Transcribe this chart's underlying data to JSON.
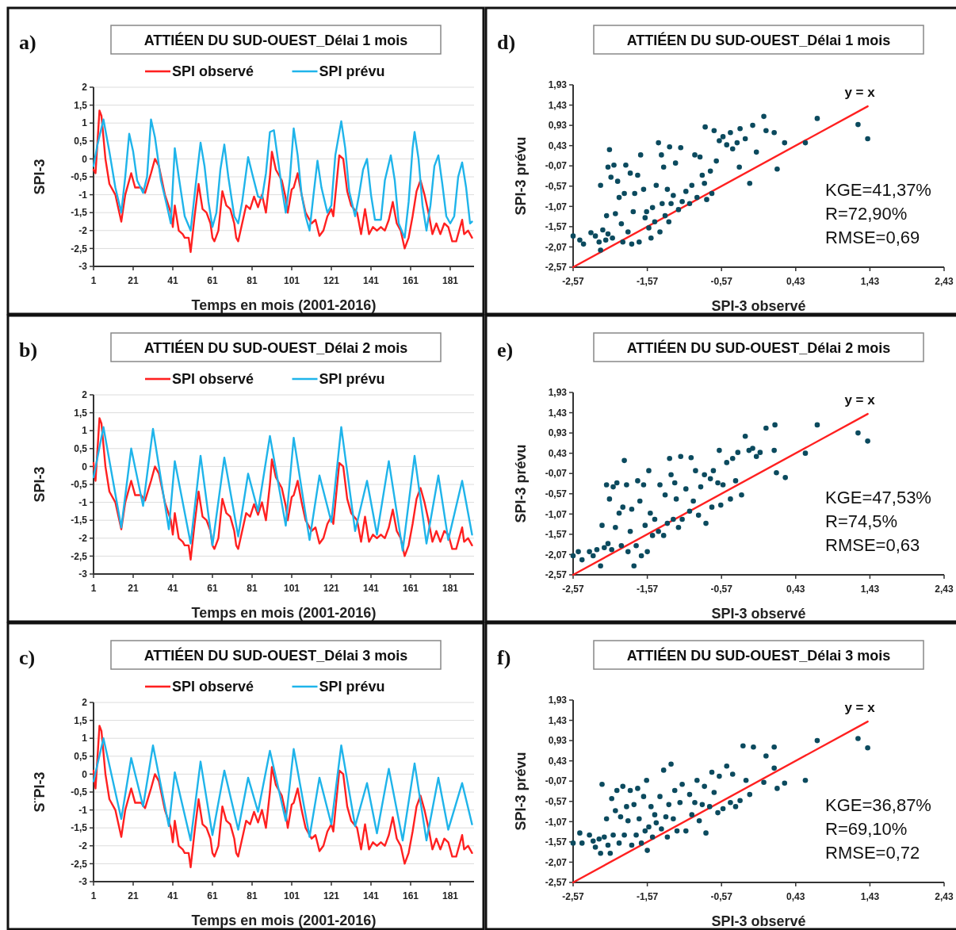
{
  "chart_data": [
    {
      "type": "line",
      "title": "ATTIÉEN DU SUD-OUEST_Délai 1 mois",
      "xlabel": "Temps en mois (2001-2016)",
      "ylabel": "SPI-3",
      "annotations": [
        "a)"
      ],
      "legend": "top",
      "grid": "y",
      "xlim": [
        1,
        193
      ],
      "xticks": [
        1,
        21,
        41,
        61,
        81,
        101,
        121,
        141,
        161,
        181
      ],
      "ylim": [
        -3,
        2
      ],
      "yticks": [
        -3,
        {
          "value": -2.5,
          "label": "-2,5"
        },
        -2,
        {
          "value": -1.5,
          "label": "-1,5"
        },
        -1,
        {
          "value": -0.5,
          "label": "-0,5"
        },
        0,
        {
          "value": 0.5,
          "label": "0,5"
        },
        1,
        {
          "value": 1.5,
          "label": "1,5"
        },
        2
      ],
      "series": [
        {
          "name": "SPI observé",
          "color": "#ff2020",
          "x": [
            1,
            2,
            4,
            5,
            7,
            9,
            12,
            14,
            15,
            17,
            20,
            22,
            25,
            27,
            30,
            32,
            34,
            37,
            40,
            41,
            42,
            44,
            46,
            47,
            49,
            50,
            52,
            54,
            56,
            58,
            60,
            61,
            62,
            64,
            66,
            68,
            70,
            72,
            73,
            74,
            76,
            78,
            80,
            82,
            84,
            86,
            88,
            90,
            91,
            93,
            96,
            98,
            99,
            101,
            102,
            104,
            106,
            108,
            111,
            113,
            115,
            117,
            119,
            121,
            122,
            125,
            127,
            129,
            131,
            134,
            136,
            138,
            140,
            142,
            144,
            146,
            148,
            150,
            152,
            154,
            156,
            158,
            160,
            162,
            164,
            166,
            168,
            170,
            172,
            174,
            176,
            178,
            180,
            182,
            184,
            186,
            187,
            188,
            190,
            192
          ],
          "values": [
            -0.3,
            -0.4,
            1.35,
            1.2,
            0,
            -0.7,
            -1.0,
            -1.5,
            -1.75,
            -1.0,
            -0.4,
            -0.8,
            -0.8,
            -0.95,
            -0.4,
            0,
            -0.2,
            -1.0,
            -1.5,
            -1.9,
            -1.3,
            -2.0,
            -2.1,
            -2.2,
            -2.2,
            -2.6,
            -1.6,
            -0.7,
            -1.4,
            -1.5,
            -1.8,
            -2.2,
            -2.3,
            -2.0,
            -0.9,
            -1.3,
            -1.4,
            -1.8,
            -2.2,
            -2.3,
            -1.8,
            -1.3,
            -1.4,
            -1.05,
            -1.35,
            -1.0,
            -1.5,
            -0.5,
            0.2,
            -0.3,
            -0.6,
            -1.1,
            -1.5,
            -0.85,
            -0.8,
            -0.4,
            -1.0,
            -1.5,
            -1.8,
            -1.7,
            -2.15,
            -2.0,
            -1.6,
            -1.4,
            -1.6,
            0.1,
            0,
            -0.9,
            -1.3,
            -1.5,
            -2.1,
            -1.4,
            -2.1,
            -1.9,
            -2.0,
            -1.9,
            -2.0,
            -1.7,
            -1.2,
            -1.8,
            -2.0,
            -2.5,
            -2.2,
            -1.6,
            -0.9,
            -0.6,
            -1.0,
            -1.5,
            -2.1,
            -1.8,
            -2.1,
            -1.8,
            -1.9,
            -2.3,
            -2.3,
            -1.9,
            -1.7,
            -2.1,
            -2.0,
            -2.2
          ]
        },
        {
          "name": "SPI prévu",
          "color": "#1fb4ea",
          "x": [
            1,
            3,
            6,
            9,
            12,
            15,
            17,
            19,
            21,
            23,
            26,
            28,
            30,
            32,
            35,
            38,
            40,
            42,
            44,
            47,
            50,
            53,
            55,
            57,
            59,
            61,
            63,
            65,
            67,
            69,
            72,
            74,
            76,
            79,
            81,
            84,
            86,
            88,
            90,
            92,
            94,
            96,
            98,
            100,
            102,
            104,
            106,
            108,
            110,
            112,
            114,
            116,
            119,
            121,
            123,
            126,
            128,
            130,
            133,
            135,
            137,
            139,
            141,
            143,
            146,
            148,
            151,
            153,
            155,
            158,
            160,
            162,
            163,
            165,
            167,
            169,
            171,
            173,
            175,
            177,
            179,
            181,
            183,
            185,
            187,
            189,
            191,
            192
          ],
          "values": [
            -0.2,
            0.4,
            1.1,
            0.2,
            -0.8,
            -1.5,
            -0.5,
            0.7,
            0.2,
            -0.6,
            -0.95,
            -0.5,
            1.1,
            0.6,
            -0.6,
            -1.3,
            -1.8,
            0.3,
            -0.5,
            -1.6,
            -2.0,
            -0.5,
            0.45,
            -0.2,
            -1.2,
            -1.9,
            -1.5,
            -0.3,
            0.4,
            -0.5,
            -1.6,
            -1.8,
            -1.2,
            0.05,
            -0.4,
            -1.05,
            -1.1,
            -0.4,
            0.75,
            0.8,
            0,
            -0.8,
            -1.5,
            -0.6,
            0.85,
            0.1,
            -1.0,
            -1.6,
            -2.0,
            -1.0,
            -0.05,
            -0.8,
            -1.5,
            -1.3,
            0.1,
            1.05,
            0.3,
            -0.9,
            -1.6,
            -1.0,
            -0.3,
            0,
            -1.0,
            -1.7,
            -1.7,
            -0.6,
            0.1,
            -0.6,
            -1.8,
            -2.2,
            -1.2,
            0.3,
            0.75,
            0,
            -1.3,
            -2.0,
            -1.3,
            -0.2,
            0.1,
            -0.7,
            -1.6,
            -1.8,
            -1.6,
            -0.5,
            -0.1,
            -0.8,
            -1.8,
            -1.75
          ]
        }
      ]
    },
    {
      "type": "scatter",
      "title": "ATTIÉEN DU SUD-OUEST_Délai 1 mois",
      "xlabel": "SPI-3 observé",
      "ylabel": "SPI-3 prévu",
      "annotations": [
        "d)",
        "KGE=41,37%",
        "R=72,90%",
        "RMSE=0,69"
      ],
      "marker": "circle",
      "xlim": [
        -2.57,
        2.43
      ],
      "xticks": [
        {
          "value": -2.57,
          "label": "-2,57"
        },
        {
          "value": -1.57,
          "label": "-1,57"
        },
        {
          "value": -0.57,
          "label": "-0,57"
        },
        {
          "value": 0.43,
          "label": "0,43"
        },
        {
          "value": 1.43,
          "label": "1,43"
        },
        {
          "value": 2.43,
          "label": "2,43"
        }
      ],
      "ylim": [
        -2.57,
        1.93
      ],
      "yticks": [
        {
          "value": -2.57,
          "label": "-2,57"
        },
        {
          "value": -2.07,
          "label": "-2,07"
        },
        {
          "value": -1.57,
          "label": "-1,57"
        },
        {
          "value": -1.07,
          "label": "-1,07"
        },
        {
          "value": -0.57,
          "label": "-0,57"
        },
        {
          "value": -0.07,
          "label": "-0,07"
        },
        {
          "value": 0.43,
          "label": "0,43"
        },
        {
          "value": 0.93,
          "label": "0,93"
        },
        {
          "value": 1.43,
          "label": "1,43"
        },
        {
          "value": 1.93,
          "label": "1,93"
        }
      ],
      "series": [
        {
          "color": "#0b4a5e",
          "x": [
            -2.57,
            -2.48,
            -2.43,
            -2.33,
            -2.27,
            -2.22,
            -2.2,
            -2.2,
            -2.17,
            -2.13,
            -2.12,
            -2.1,
            -2.1,
            -2.08,
            -2.06,
            -2.04,
            -2.02,
            -2,
            -1.97,
            -1.95,
            -1.92,
            -1.9,
            -1.88,
            -1.86,
            -1.83,
            -1.8,
            -1.78,
            -1.76,
            -1.74,
            -1.7,
            -1.68,
            -1.66,
            -1.62,
            -1.6,
            -1.58,
            -1.55,
            -1.52,
            -1.5,
            -1.47,
            -1.45,
            -1.42,
            -1.4,
            -1.38,
            -1.37,
            -1.35,
            -1.33,
            -1.3,
            -1.28,
            -1.27,
            -1.25,
            -1.22,
            -1.19,
            -1.15,
            -1.12,
            -1.1,
            -1.05,
            -1,
            -0.97,
            -0.93,
            -0.9,
            -0.86,
            -0.83,
            -0.8,
            -0.79,
            -0.77,
            -0.72,
            -0.7,
            -0.67,
            -0.64,
            -0.6,
            -0.55,
            -0.5,
            -0.45,
            -0.42,
            -0.36,
            -0.32,
            -0.33,
            -0.25,
            -0.19,
            -0.15,
            -0.1,
            0,
            0.03,
            0.14,
            0.18,
            0.28,
            0.56,
            0.72,
            1.27,
            1.4
          ],
          "values": [
            -1.8,
            -1.9,
            -2,
            -1.72,
            -1.8,
            -1.95,
            -2.15,
            -0.55,
            -1.65,
            -1.9,
            -1.3,
            -1.75,
            -0.1,
            0.33,
            -0.35,
            -1.85,
            -0.05,
            -1.25,
            -0.45,
            -0.85,
            -1.5,
            -1.95,
            -0.75,
            -0.05,
            -1.7,
            -0.25,
            -2,
            -1.2,
            -0.75,
            -0.3,
            -1.95,
            0.2,
            -0.65,
            -1.35,
            -1.2,
            -1.6,
            -1.85,
            -1.1,
            -1.45,
            -0.55,
            0.5,
            -1.7,
            0.2,
            -1,
            -0.1,
            -1.3,
            -0.65,
            -1.45,
            0.4,
            -1,
            -0.8,
            0,
            -1.15,
            0.38,
            -0.95,
            -0.7,
            -1,
            -0.55,
            0.2,
            -0.85,
            0.15,
            -0.3,
            -0.5,
            0.89,
            -0.9,
            -0.2,
            -0.75,
            0.8,
            0.05,
            0.55,
            0.65,
            0.45,
            0.75,
            0.35,
            0.5,
            0.85,
            -0.1,
            0.6,
            -0.5,
            0.93,
            0.27,
            1.15,
            0.8,
            0.75,
            -0.15,
            0.5,
            0.5,
            1.1,
            0.95,
            0.6
          ]
        },
        {
          "name": "y = x",
          "type": "line",
          "marker": "none",
          "color": "#ff2020",
          "x": [
            -2.57,
            1.4
          ],
          "values": [
            -2.57,
            1.4
          ]
        }
      ]
    },
    {
      "type": "line",
      "title": "ATTIÉEN DU SUD-OUEST_Délai 2 mois",
      "xlabel": "Temps en mois (2001-2016)",
      "ylabel": "SPI-3",
      "annotations": [
        "b)"
      ],
      "legend": "top",
      "grid": "y",
      "xlim": [
        1,
        193
      ],
      "xticks": [
        1,
        21,
        41,
        61,
        81,
        101,
        121,
        141,
        161,
        181
      ],
      "ylim": [
        -3,
        2
      ],
      "yticks": [
        -3,
        {
          "value": -2.5,
          "label": "-2,5"
        },
        -2,
        {
          "value": -1.5,
          "label": "-1,5"
        },
        -1,
        {
          "value": -0.5,
          "label": "-0,5"
        },
        0,
        {
          "value": 0.5,
          "label": "0,5"
        },
        1,
        {
          "value": 1.5,
          "label": "1,5"
        },
        2
      ],
      "series": [
        {
          "name": "SPI observé",
          "color": "#ff2020",
          "x": [
            1,
            2,
            4,
            5,
            7,
            9,
            12,
            14,
            15,
            17,
            20,
            22,
            25,
            27,
            30,
            32,
            34,
            37,
            40,
            41,
            42,
            44,
            46,
            47,
            49,
            50,
            52,
            54,
            56,
            58,
            60,
            61,
            62,
            64,
            66,
            68,
            70,
            72,
            73,
            74,
            76,
            78,
            80,
            82,
            84,
            86,
            88,
            90,
            91,
            93,
            96,
            98,
            99,
            101,
            102,
            104,
            106,
            108,
            111,
            113,
            115,
            117,
            119,
            121,
            122,
            125,
            127,
            129,
            131,
            134,
            136,
            138,
            140,
            142,
            144,
            146,
            148,
            150,
            152,
            154,
            156,
            158,
            160,
            162,
            164,
            166,
            168,
            170,
            172,
            174,
            176,
            178,
            180,
            182,
            184,
            186,
            187,
            188,
            190,
            192
          ],
          "values": [
            0.1,
            -0.4,
            1.35,
            1.2,
            0,
            -0.7,
            -1.0,
            -1.5,
            -1.75,
            -1.0,
            -0.4,
            -0.8,
            -0.8,
            -0.95,
            -0.4,
            0,
            -0.2,
            -1.0,
            -1.5,
            -1.9,
            -1.3,
            -2.0,
            -2.1,
            -2.2,
            -2.2,
            -2.6,
            -1.6,
            -0.7,
            -1.4,
            -1.5,
            -1.8,
            -2.2,
            -2.3,
            -2.0,
            -0.9,
            -1.3,
            -1.4,
            -1.8,
            -2.2,
            -2.3,
            -1.8,
            -1.3,
            -1.4,
            -1.05,
            -1.35,
            -1.0,
            -1.5,
            -0.5,
            0.2,
            -0.3,
            -0.6,
            -1.1,
            -1.5,
            -0.85,
            -0.8,
            -0.4,
            -1.0,
            -1.5,
            -1.8,
            -1.7,
            -2.15,
            -2.0,
            -1.6,
            -1.4,
            -1.6,
            0.1,
            0,
            -0.9,
            -1.3,
            -1.5,
            -2.1,
            -1.4,
            -2.1,
            -1.9,
            -2.0,
            -1.9,
            -2.0,
            -1.7,
            -1.2,
            -1.8,
            -2.0,
            -2.5,
            -2.2,
            -1.6,
            -0.9,
            -0.6,
            -1.0,
            -1.5,
            -2.1,
            -1.8,
            -2.1,
            -1.8,
            -1.9,
            -2.3,
            -2.3,
            -1.9,
            -1.7,
            -2.1,
            -2.0,
            -2.2
          ]
        },
        {
          "name": "SPI prévu",
          "color": "#1fb4ea",
          "x": [
            1,
            6,
            15,
            20,
            26,
            31,
            39,
            42,
            50,
            55,
            61,
            67,
            74,
            79,
            84,
            90,
            98,
            102,
            110,
            115,
            121,
            126,
            133,
            139,
            144,
            150,
            157,
            163,
            169,
            175,
            180,
            187,
            192
          ],
          "values": [
            -0.3,
            1.1,
            -1.7,
            0.5,
            -1.1,
            1.05,
            -1.75,
            0.15,
            -2.15,
            0.3,
            -2.2,
            0.25,
            -1.95,
            -0.2,
            -1.25,
            0.85,
            -1.65,
            0.8,
            -2.05,
            -0.25,
            -1.55,
            1.1,
            -1.8,
            -0.4,
            -1.9,
            0.15,
            -2.35,
            0.3,
            -2.15,
            -0.25,
            -2.05,
            -0.4,
            -1.9
          ]
        }
      ]
    },
    {
      "type": "scatter",
      "title": "ATTIÉEN DU SUD-OUEST_Délai 2 mois",
      "xlabel": "SPI-3 observé",
      "ylabel": "SPI-3 prévu",
      "annotations": [
        "e)",
        "KGE=47,53%",
        "R=74,5%",
        "RMSE=0,63"
      ],
      "marker": "circle",
      "xlim": [
        -2.57,
        2.43
      ],
      "xticks": [
        {
          "value": -2.57,
          "label": "-2,57"
        },
        {
          "value": -1.57,
          "label": "-1,57"
        },
        {
          "value": -0.57,
          "label": "-0,57"
        },
        {
          "value": 0.43,
          "label": "0,43"
        },
        {
          "value": 1.43,
          "label": "1,43"
        },
        {
          "value": 2.43,
          "label": "2,43"
        }
      ],
      "ylim": [
        -2.57,
        1.93
      ],
      "yticks": [
        {
          "value": -2.57,
          "label": "-2,57"
        },
        {
          "value": -2.07,
          "label": "-2,07"
        },
        {
          "value": -1.57,
          "label": "-1,57"
        },
        {
          "value": -1.07,
          "label": "-1,07"
        },
        {
          "value": -0.57,
          "label": "-0,57"
        },
        {
          "value": -0.07,
          "label": "-0,07"
        },
        {
          "value": 0.43,
          "label": "0,43"
        },
        {
          "value": 0.93,
          "label": "0,93"
        },
        {
          "value": 1.43,
          "label": "1,43"
        },
        {
          "value": 1.93,
          "label": "1,93"
        }
      ],
      "series": [
        {
          "color": "#0b4a5e",
          "x": [
            -2.57,
            -2.5,
            -2.45,
            -2.35,
            -2.3,
            -2.25,
            -2.2,
            -2.18,
            -2.15,
            -2.12,
            -2.1,
            -2.08,
            -2.05,
            -2.03,
            -2,
            -1.98,
            -1.95,
            -1.92,
            -1.9,
            -1.88,
            -1.85,
            -1.83,
            -1.8,
            -1.78,
            -1.75,
            -1.72,
            -1.7,
            -1.67,
            -1.65,
            -1.62,
            -1.6,
            -1.57,
            -1.55,
            -1.53,
            -1.5,
            -1.47,
            -1.42,
            -1.4,
            -1.35,
            -1.33,
            -1.3,
            -1.27,
            -1.25,
            -1.22,
            -1.2,
            -1.18,
            -1.15,
            -1.12,
            -1.1,
            -1.05,
            -1,
            -0.98,
            -0.95,
            -0.92,
            -0.88,
            -0.85,
            -0.8,
            -0.78,
            -0.72,
            -0.7,
            -0.68,
            -0.62,
            -0.6,
            -0.58,
            -0.55,
            -0.5,
            -0.45,
            -0.42,
            -0.38,
            -0.35,
            -0.3,
            -0.25,
            -0.2,
            -0.15,
            -0.1,
            -0.05,
            0.03,
            0.14,
            0.15,
            0.17,
            0.29,
            0.56,
            0.72,
            1.27,
            1.4
          ],
          "values": [
            -2.1,
            -2,
            -2.2,
            -2,
            -2.1,
            -1.95,
            -2.35,
            -1.35,
            -1.9,
            -0.35,
            -1.8,
            -0.7,
            -1.95,
            -0.4,
            -1.4,
            -0.3,
            -1.05,
            -1.85,
            -0.9,
            0.25,
            -0.35,
            -2,
            -1.5,
            -0.95,
            -2.35,
            -1.85,
            -0.25,
            -0.75,
            -2.1,
            -0.35,
            -1.35,
            -2,
            0,
            -1.05,
            -1.6,
            -1.2,
            -1.5,
            -0.35,
            -1.6,
            -0.6,
            -1.3,
            0.3,
            -0.1,
            -1.2,
            -0.3,
            -0.7,
            -1.4,
            0.35,
            -1.2,
            -0.45,
            -1,
            0.32,
            -0.75,
            0,
            -1.1,
            -0.4,
            -0.1,
            -1.3,
            -0.2,
            -0.9,
            0,
            -0.3,
            0.5,
            -0.85,
            -0.35,
            0.2,
            -0.7,
            0.3,
            -0.25,
            0.45,
            -0.6,
            0.85,
            0.5,
            0.55,
            0.35,
            0.45,
            1.05,
            0.5,
            1.13,
            -0.05,
            -0.17,
            0.43,
            1.13,
            0.93,
            0.73
          ]
        },
        {
          "name": "y = x",
          "type": "line",
          "marker": "none",
          "color": "#ff2020",
          "x": [
            -2.57,
            1.4
          ],
          "values": [
            -2.57,
            1.4
          ]
        }
      ]
    },
    {
      "type": "line",
      "title": "ATTIÉEN DU SUD-OUEST_Délai 3 mois",
      "xlabel": "Temps en mois (2001-2016)",
      "ylabel": "S¨PI-3",
      "annotations": [
        "c)"
      ],
      "legend": "top",
      "grid": "y",
      "xlim": [
        1,
        193
      ],
      "xticks": [
        1,
        21,
        41,
        61,
        81,
        101,
        121,
        141,
        161,
        181
      ],
      "ylim": [
        -3,
        2
      ],
      "yticks": [
        -3,
        {
          "value": -2.5,
          "label": "-2,5"
        },
        -2,
        {
          "value": -1.5,
          "label": "-1,5"
        },
        -1,
        {
          "value": -0.5,
          "label": "-0,5"
        },
        0,
        {
          "value": 0.5,
          "label": "0,5"
        },
        1,
        {
          "value": 1.5,
          "label": "1,5"
        },
        2
      ],
      "series": [
        {
          "name": "SPI observé",
          "color": "#ff2020",
          "x": [
            1,
            2,
            4,
            5,
            7,
            9,
            12,
            14,
            15,
            17,
            20,
            22,
            25,
            27,
            30,
            32,
            34,
            37,
            40,
            41,
            42,
            44,
            46,
            47,
            49,
            50,
            52,
            54,
            56,
            58,
            60,
            61,
            62,
            64,
            66,
            68,
            70,
            72,
            73,
            74,
            76,
            78,
            80,
            82,
            84,
            86,
            88,
            90,
            91,
            93,
            96,
            98,
            99,
            101,
            102,
            104,
            106,
            108,
            111,
            113,
            115,
            117,
            119,
            121,
            122,
            125,
            127,
            129,
            131,
            134,
            136,
            138,
            140,
            142,
            144,
            146,
            148,
            150,
            152,
            154,
            156,
            158,
            160,
            162,
            164,
            166,
            168,
            170,
            172,
            174,
            176,
            178,
            180,
            182,
            184,
            186,
            187,
            188,
            190,
            192
          ],
          "values": [
            0.1,
            -0.4,
            1.35,
            1.2,
            0,
            -0.7,
            -1.0,
            -1.5,
            -1.75,
            -1.0,
            -0.4,
            -0.8,
            -0.8,
            -0.95,
            -0.4,
            0,
            -0.2,
            -1.0,
            -1.5,
            -1.9,
            -1.3,
            -2.0,
            -2.1,
            -2.2,
            -2.2,
            -2.6,
            -1.6,
            -0.7,
            -1.4,
            -1.5,
            -1.8,
            -2.2,
            -2.3,
            -2.0,
            -0.9,
            -1.3,
            -1.4,
            -1.8,
            -2.2,
            -2.3,
            -1.8,
            -1.3,
            -1.4,
            -1.05,
            -1.35,
            -1.0,
            -1.5,
            -0.5,
            0.2,
            -0.3,
            -0.6,
            -1.1,
            -1.5,
            -0.85,
            -0.8,
            -0.4,
            -1.0,
            -1.5,
            -1.8,
            -1.7,
            -2.15,
            -2.0,
            -1.6,
            -1.4,
            -1.6,
            0.1,
            0,
            -0.9,
            -1.3,
            -1.5,
            -2.1,
            -1.4,
            -2.1,
            -1.9,
            -2.0,
            -1.9,
            -2.0,
            -1.7,
            -1.2,
            -1.8,
            -2.0,
            -2.5,
            -2.2,
            -1.6,
            -0.9,
            -0.6,
            -1.0,
            -1.5,
            -2.1,
            -1.8,
            -2.1,
            -1.8,
            -1.9,
            -2.3,
            -2.3,
            -1.9,
            -1.7,
            -2.1,
            -2.0,
            -2.2
          ]
        },
        {
          "name": "SPI prévu",
          "color": "#1fb4ea",
          "x": [
            1,
            6,
            15,
            20,
            26,
            31,
            39,
            42,
            50,
            55,
            61,
            67,
            74,
            79,
            84,
            90,
            98,
            102,
            110,
            115,
            121,
            126,
            133,
            139,
            144,
            150,
            157,
            163,
            169,
            175,
            180,
            187,
            192
          ],
          "values": [
            -0.2,
            1.0,
            -1.25,
            0.45,
            -0.9,
            0.8,
            -1.45,
            0.05,
            -1.85,
            0.35,
            -1.7,
            0.1,
            -1.55,
            -0.1,
            -1.05,
            0.65,
            -1.3,
            0.7,
            -1.75,
            -0.1,
            -1.4,
            0.8,
            -1.45,
            -0.25,
            -1.65,
            0.15,
            -1.85,
            0.3,
            -1.85,
            -0.1,
            -1.55,
            -0.25,
            -1.4
          ]
        }
      ]
    },
    {
      "type": "scatter",
      "title": "ATTIÉEN DU SUD-OUEST_Délai 3 mois",
      "xlabel": "SPI-3 observé",
      "ylabel": "SPI-3 prévu",
      "annotations": [
        "f)",
        "KGE=36,87%",
        "R=69,10%",
        "RMSE=0,72"
      ],
      "marker": "circle",
      "xlim": [
        -2.57,
        2.43
      ],
      "xticks": [
        {
          "value": -2.57,
          "label": "-2,57"
        },
        {
          "value": -1.57,
          "label": "-1,57"
        },
        {
          "value": -0.57,
          "label": "-0,57"
        },
        {
          "value": 0.43,
          "label": "0,43"
        },
        {
          "value": 1.43,
          "label": "1,43"
        },
        {
          "value": 2.43,
          "label": "2,43"
        }
      ],
      "ylim": [
        -2.57,
        1.93
      ],
      "yticks": [
        {
          "value": -2.57,
          "label": "-2,57"
        },
        {
          "value": -2.07,
          "label": "-2,07"
        },
        {
          "value": -1.57,
          "label": "-1,57"
        },
        {
          "value": -1.07,
          "label": "-1,07"
        },
        {
          "value": -0.57,
          "label": "-0,57"
        },
        {
          "value": -0.07,
          "label": "-0,07"
        },
        {
          "value": 0.43,
          "label": "0,43"
        },
        {
          "value": 0.93,
          "label": "0,93"
        },
        {
          "value": 1.43,
          "label": "1,43"
        },
        {
          "value": 1.93,
          "label": "1,93"
        }
      ],
      "series": [
        {
          "color": "#0b4a5e",
          "x": [
            -2.57,
            -2.48,
            -2.45,
            -2.35,
            -2.3,
            -2.27,
            -2.22,
            -2.2,
            -2.18,
            -2.15,
            -2.12,
            -2.1,
            -2.07,
            -2.05,
            -2.03,
            -2,
            -1.98,
            -1.95,
            -1.93,
            -1.9,
            -1.88,
            -1.85,
            -1.83,
            -1.8,
            -1.78,
            -1.75,
            -1.72,
            -1.7,
            -1.68,
            -1.65,
            -1.62,
            -1.6,
            -1.58,
            -1.57,
            -1.55,
            -1.52,
            -1.5,
            -1.47,
            -1.45,
            -1.4,
            -1.38,
            -1.35,
            -1.32,
            -1.3,
            -1.28,
            -1.25,
            -1.22,
            -1.2,
            -1.17,
            -1.13,
            -1.1,
            -1.05,
            -1,
            -0.97,
            -0.93,
            -0.9,
            -0.87,
            -0.83,
            -0.8,
            -0.78,
            -0.73,
            -0.7,
            -0.67,
            -0.62,
            -0.6,
            -0.55,
            -0.5,
            -0.45,
            -0.42,
            -0.38,
            -0.32,
            -0.28,
            -0.24,
            -0.19,
            -0.14,
            0,
            0.03,
            0.14,
            0.14,
            0.18,
            0.28,
            0.56,
            0.72,
            1.27,
            1.4
          ],
          "values": [
            -1.6,
            -1.35,
            -1.6,
            -1.4,
            -1.55,
            -1.7,
            -1.5,
            -1.85,
            -0.15,
            -1.45,
            -1,
            -1.65,
            -1.85,
            -0.5,
            -1.4,
            -0.8,
            -0.3,
            -1.6,
            -0.95,
            -0.2,
            -1.4,
            -0.7,
            -1.05,
            -0.3,
            -1.65,
            -0.65,
            -1.4,
            -0.25,
            -1,
            -1.6,
            -0.45,
            -1.3,
            -0.05,
            -1.78,
            -1.2,
            -0.7,
            -1.45,
            -0.9,
            -1.1,
            -0.45,
            -1.25,
            0.2,
            -0.95,
            -1.45,
            -0.65,
            0.35,
            -1,
            -0.3,
            -1.3,
            -0.6,
            -0.15,
            -1.3,
            -0.4,
            -0.9,
            -0.6,
            -0.05,
            -1.05,
            -0.65,
            -0.2,
            -1.35,
            -0.7,
            0.15,
            -0.35,
            -0.85,
            0.05,
            -0.75,
            0.3,
            -0.6,
            0.1,
            -0.7,
            -0.55,
            0.8,
            -0.05,
            -0.4,
            0.77,
            -0.1,
            0.55,
            0.77,
            0.25,
            -0.25,
            -0.12,
            -0.05,
            0.93,
            0.98,
            0.75
          ]
        },
        {
          "name": "y = x",
          "type": "line",
          "marker": "none",
          "color": "#ff2020",
          "x": [
            -2.57,
            1.4
          ],
          "values": [
            -2.57,
            1.4
          ]
        }
      ]
    }
  ]
}
